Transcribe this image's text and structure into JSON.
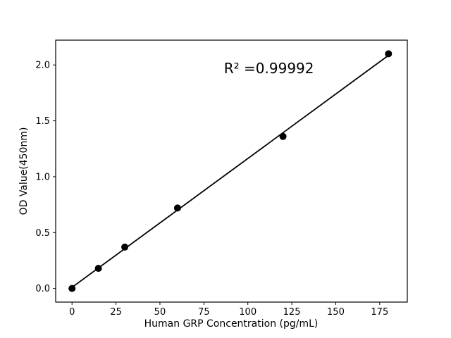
{
  "figure": {
    "background": "#ffffff",
    "foreground": "#000000"
  },
  "chart_data": {
    "type": "scatter",
    "title": "",
    "xlabel": "Human GRP Concentration (pg/mL)",
    "ylabel": "OD Value(450nm)",
    "x": [
      0,
      15,
      30,
      60,
      120,
      180
    ],
    "y": [
      0.0,
      0.18,
      0.37,
      0.72,
      1.36,
      2.1
    ],
    "fit_line": {
      "slope": 0.011532,
      "intercept": 0.0099,
      "x_start": 0,
      "x_end": 180,
      "r_squared_label": "R² =0.99992"
    },
    "annotation": {
      "text": "R² =0.99992",
      "x": 112,
      "y": 1.97
    },
    "x_ticks": [
      "0",
      "25",
      "50",
      "75",
      "100",
      "125",
      "150",
      "175"
    ],
    "x_tick_values": [
      0,
      25,
      50,
      75,
      100,
      125,
      150,
      175
    ],
    "y_ticks": [
      "0.0",
      "0.5",
      "1.0",
      "1.5",
      "2.0"
    ],
    "y_tick_values": [
      0.0,
      0.5,
      1.0,
      1.5,
      2.0
    ],
    "xlim": [
      -9.3,
      190.7
    ],
    "ylim": [
      -0.122,
      2.222
    ],
    "grid": false,
    "legend": null,
    "marker_color": "#000000",
    "line_color": "#000000",
    "marker_radius_px": 5
  }
}
